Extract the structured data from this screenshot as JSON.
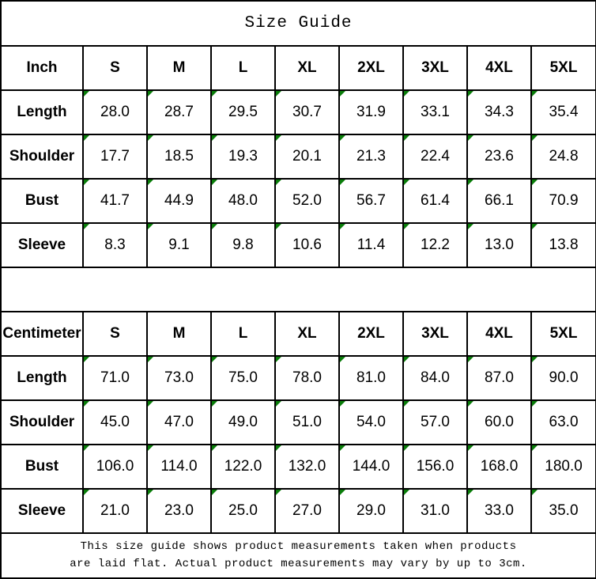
{
  "title": "Size Guide",
  "colors": {
    "flag_green": "#0a7d0a",
    "border": "#000000",
    "background": "#ffffff",
    "text": "#000000"
  },
  "footer": {
    "line1": "This size guide shows product measurements taken when products",
    "line2": "are laid flat. Actual product measurements may vary by up to 3cm."
  },
  "tables": [
    {
      "unit_label": "Inch",
      "sizes": [
        "S",
        "M",
        "L",
        "XL",
        "2XL",
        "3XL",
        "4XL",
        "5XL"
      ],
      "rows": [
        {
          "label": "Length",
          "values": [
            "28.0",
            "28.7",
            "29.5",
            "30.7",
            "31.9",
            "33.1",
            "34.3",
            "35.4"
          ]
        },
        {
          "label": "Shoulder",
          "values": [
            "17.7",
            "18.5",
            "19.3",
            "20.1",
            "21.3",
            "22.4",
            "23.6",
            "24.8"
          ]
        },
        {
          "label": "Bust",
          "values": [
            "41.7",
            "44.9",
            "48.0",
            "52.0",
            "56.7",
            "61.4",
            "66.1",
            "70.9"
          ]
        },
        {
          "label": "Sleeve",
          "values": [
            "8.3",
            "9.1",
            "9.8",
            "10.6",
            "11.4",
            "12.2",
            "13.0",
            "13.8"
          ]
        }
      ]
    },
    {
      "unit_label": "Centimeter",
      "sizes": [
        "S",
        "M",
        "L",
        "XL",
        "2XL",
        "3XL",
        "4XL",
        "5XL"
      ],
      "rows": [
        {
          "label": "Length",
          "values": [
            "71.0",
            "73.0",
            "75.0",
            "78.0",
            "81.0",
            "84.0",
            "87.0",
            "90.0"
          ]
        },
        {
          "label": "Shoulder",
          "values": [
            "45.0",
            "47.0",
            "49.0",
            "51.0",
            "54.0",
            "57.0",
            "60.0",
            "63.0"
          ]
        },
        {
          "label": "Bust",
          "values": [
            "106.0",
            "114.0",
            "122.0",
            "132.0",
            "144.0",
            "156.0",
            "168.0",
            "180.0"
          ]
        },
        {
          "label": "Sleeve",
          "values": [
            "21.0",
            "23.0",
            "25.0",
            "27.0",
            "29.0",
            "31.0",
            "33.0",
            "35.0"
          ]
        }
      ]
    }
  ]
}
